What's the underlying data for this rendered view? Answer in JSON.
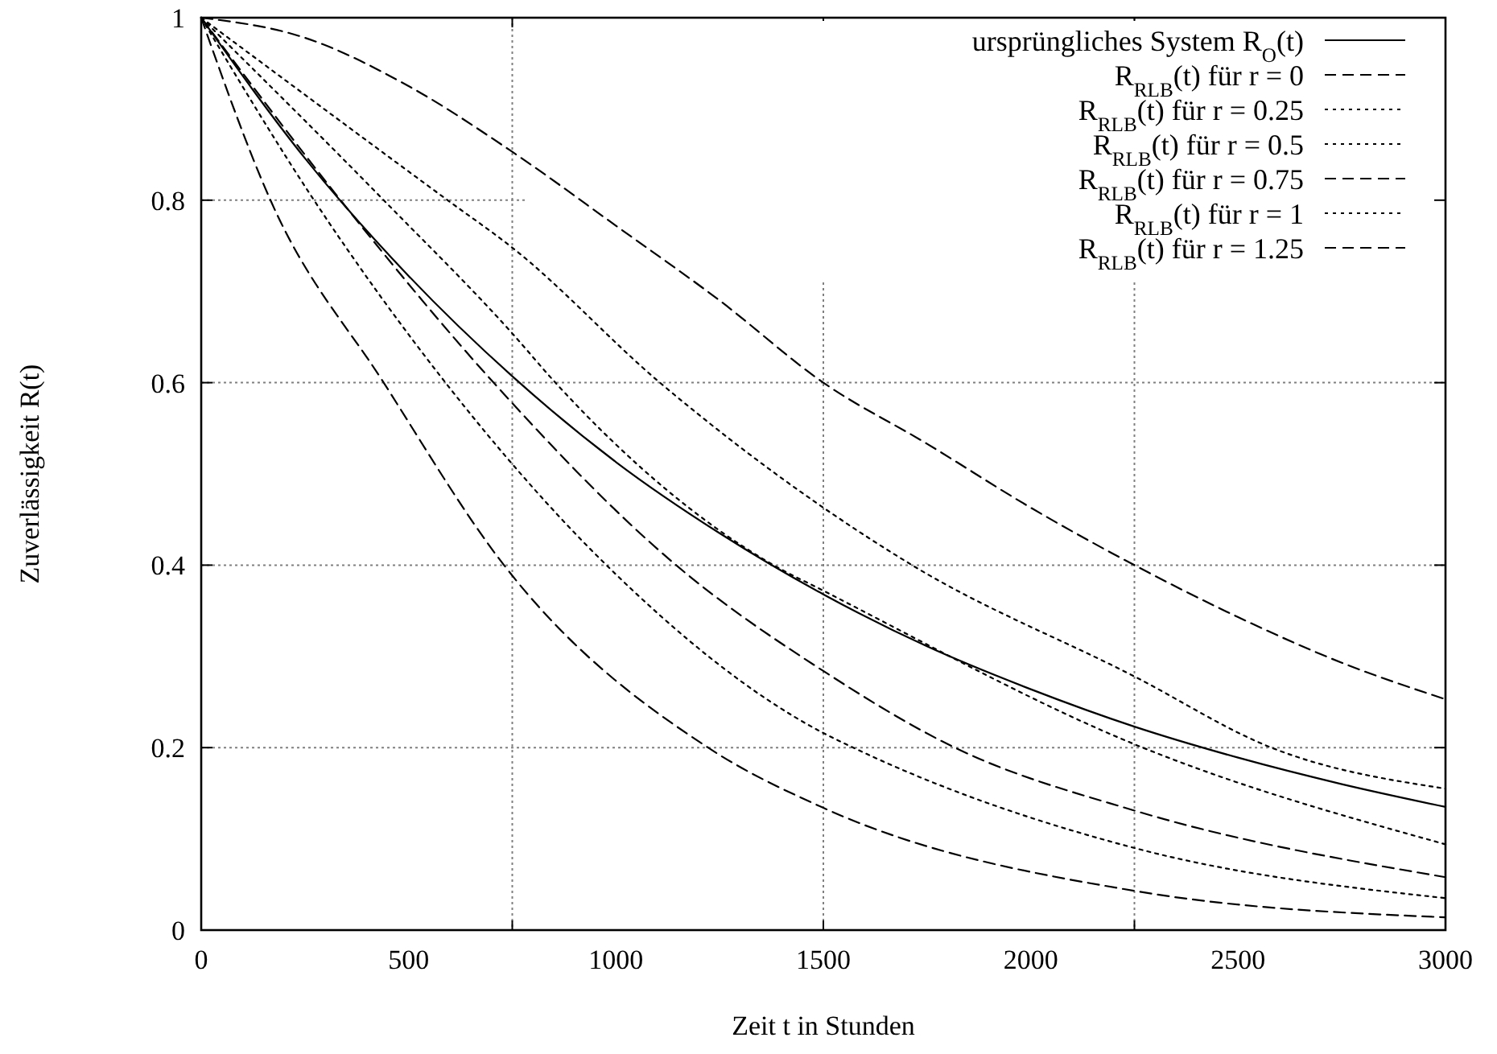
{
  "chart_data": {
    "type": "line",
    "xlabel": "Zeit t in Stunden",
    "ylabel": "Zuverlässigkeit R(t)",
    "xlim": [
      0,
      3000
    ],
    "ylim": [
      0,
      1
    ],
    "xticks": [
      0,
      500,
      1000,
      1500,
      2000,
      2500,
      3000
    ],
    "yticks": [
      0,
      0.2,
      0.4,
      0.6,
      0.8,
      1
    ],
    "grid": "y",
    "legend": "top right",
    "marker": "none",
    "ref_lines": [
      {
        "axis": "x",
        "value": 750,
        "color": "#808080",
        "line_style": "dotted"
      },
      {
        "axis": "x",
        "value": 1500,
        "color": "#808080",
        "line_style": "dotted"
      },
      {
        "axis": "x",
        "value": 2250,
        "color": "#808080",
        "line_style": "dotted"
      }
    ],
    "series": [
      {
        "name": "ursprüngliches System R$_{O}$(t)",
        "color": "#000000",
        "line_style": "solid",
        "x": [
          0,
          250,
          500,
          750,
          1000,
          1250,
          1500,
          1750,
          2000,
          2250,
          2500,
          2750,
          3000
        ],
        "values": [
          1,
          0.846,
          0.717,
          0.607,
          0.513,
          0.435,
          0.368,
          0.311,
          0.264,
          0.223,
          0.189,
          0.16,
          0.135
        ]
      },
      {
        "name": "R$_{RLB}$(t) für r = 0",
        "color": "#000000",
        "line_style": "dashed",
        "x": [
          0,
          250,
          500,
          750,
          1000,
          1250,
          1500,
          1750,
          2000,
          2250,
          2500,
          2750,
          3000
        ],
        "values": [
          1,
          0.978,
          0.925,
          0.853,
          0.772,
          0.69,
          0.6,
          0.533,
          0.463,
          0.4,
          0.343,
          0.293,
          0.253
        ]
      },
      {
        "name": "R$_{RLB}$(t) für r = 0.25",
        "color": "#000000",
        "line_style": "dotted",
        "x": [
          0,
          594,
          750,
          1106,
          1500,
          1714,
          2250,
          2580,
          3000
        ],
        "values": [
          1,
          0.8,
          0.748,
          0.6,
          0.463,
          0.4,
          0.278,
          0.2,
          0.155
        ]
      },
      {
        "name": "R$_{RLB}$(t) für r = 0.5",
        "color": "#000000",
        "line_style": "dotted",
        "x": [
          0,
          440,
          750,
          854,
          1380,
          1500,
          2270,
          3000
        ],
        "values": [
          1,
          0.8,
          0.654,
          0.6,
          0.4,
          0.372,
          0.2,
          0.094
        ]
      },
      {
        "name": "R$_{RLB}$(t) für r = 0.75",
        "color": "#000000",
        "line_style": "dashed",
        "x": [
          0,
          336,
          705,
          1145,
          1500,
          1817,
          2250,
          3000
        ],
        "values": [
          1,
          0.8,
          0.6,
          0.4,
          0.284,
          0.2,
          0.131,
          0.058
        ]
      },
      {
        "name": "R$_{RLB}$(t) für r = 1",
        "color": "#000000",
        "line_style": "dotted",
        "x": [
          0,
          272,
          589,
          977,
          1500,
          1572,
          2250,
          3000
        ],
        "values": [
          1,
          0.8,
          0.6,
          0.4,
          0.216,
          0.2,
          0.09,
          0.035
        ]
      },
      {
        "name": "R$_{RLB}$(t) für r = 1.25",
        "color": "#000000",
        "line_style": "dashed",
        "x": [
          0,
          167,
          440,
          730,
          1222,
          1500,
          2250,
          3000
        ],
        "values": [
          1,
          0.8,
          0.6,
          0.4,
          0.2,
          0.134,
          0.043,
          0.014
        ]
      }
    ]
  }
}
